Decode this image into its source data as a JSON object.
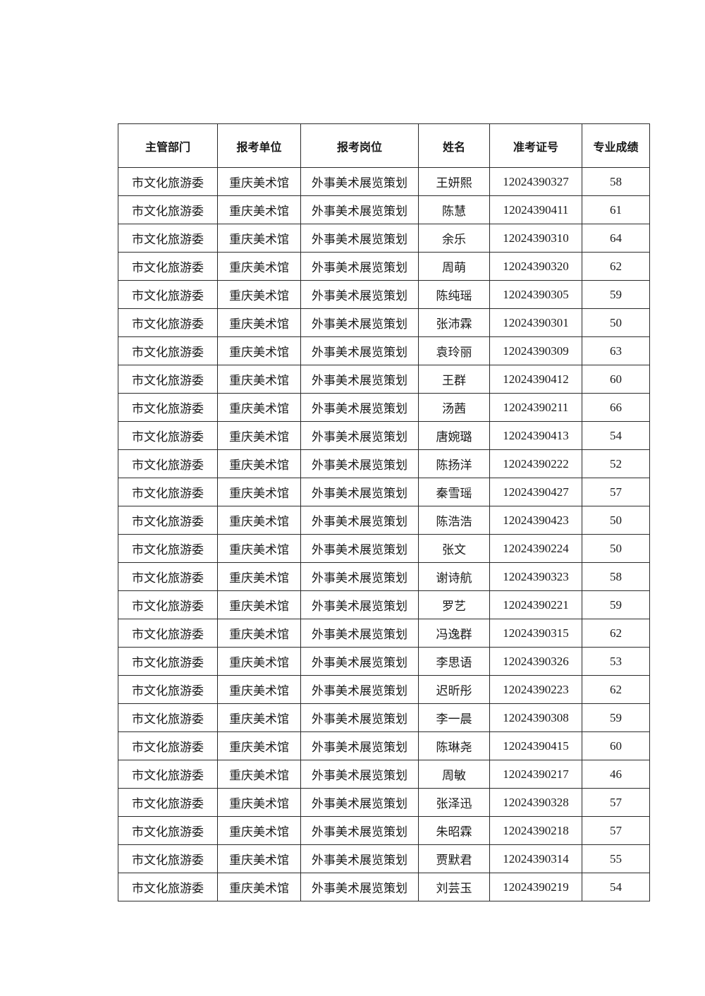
{
  "table": {
    "headers": [
      "主管部门",
      "报考单位",
      "报考岗位",
      "姓名",
      "准考证号",
      "专业成绩"
    ],
    "rows": [
      [
        "市文化旅游委",
        "重庆美术馆",
        "外事美术展览策划",
        "王妍熙",
        "12024390327",
        "58"
      ],
      [
        "市文化旅游委",
        "重庆美术馆",
        "外事美术展览策划",
        "陈慧",
        "12024390411",
        "61"
      ],
      [
        "市文化旅游委",
        "重庆美术馆",
        "外事美术展览策划",
        "余乐",
        "12024390310",
        "64"
      ],
      [
        "市文化旅游委",
        "重庆美术馆",
        "外事美术展览策划",
        "周萌",
        "12024390320",
        "62"
      ],
      [
        "市文化旅游委",
        "重庆美术馆",
        "外事美术展览策划",
        "陈纯瑶",
        "12024390305",
        "59"
      ],
      [
        "市文化旅游委",
        "重庆美术馆",
        "外事美术展览策划",
        "张沛霖",
        "12024390301",
        "50"
      ],
      [
        "市文化旅游委",
        "重庆美术馆",
        "外事美术展览策划",
        "袁玲丽",
        "12024390309",
        "63"
      ],
      [
        "市文化旅游委",
        "重庆美术馆",
        "外事美术展览策划",
        "王群",
        "12024390412",
        "60"
      ],
      [
        "市文化旅游委",
        "重庆美术馆",
        "外事美术展览策划",
        "汤茜",
        "12024390211",
        "66"
      ],
      [
        "市文化旅游委",
        "重庆美术馆",
        "外事美术展览策划",
        "唐婉璐",
        "12024390413",
        "54"
      ],
      [
        "市文化旅游委",
        "重庆美术馆",
        "外事美术展览策划",
        "陈扬洋",
        "12024390222",
        "52"
      ],
      [
        "市文化旅游委",
        "重庆美术馆",
        "外事美术展览策划",
        "秦雪瑶",
        "12024390427",
        "57"
      ],
      [
        "市文化旅游委",
        "重庆美术馆",
        "外事美术展览策划",
        "陈浩浩",
        "12024390423",
        "50"
      ],
      [
        "市文化旅游委",
        "重庆美术馆",
        "外事美术展览策划",
        "张文",
        "12024390224",
        "50"
      ],
      [
        "市文化旅游委",
        "重庆美术馆",
        "外事美术展览策划",
        "谢诗航",
        "12024390323",
        "58"
      ],
      [
        "市文化旅游委",
        "重庆美术馆",
        "外事美术展览策划",
        "罗艺",
        "12024390221",
        "59"
      ],
      [
        "市文化旅游委",
        "重庆美术馆",
        "外事美术展览策划",
        "冯逸群",
        "12024390315",
        "62"
      ],
      [
        "市文化旅游委",
        "重庆美术馆",
        "外事美术展览策划",
        "李思语",
        "12024390326",
        "53"
      ],
      [
        "市文化旅游委",
        "重庆美术馆",
        "外事美术展览策划",
        "迟昕彤",
        "12024390223",
        "62"
      ],
      [
        "市文化旅游委",
        "重庆美术馆",
        "外事美术展览策划",
        "李一晨",
        "12024390308",
        "59"
      ],
      [
        "市文化旅游委",
        "重庆美术馆",
        "外事美术展览策划",
        "陈琳尧",
        "12024390415",
        "60"
      ],
      [
        "市文化旅游委",
        "重庆美术馆",
        "外事美术展览策划",
        "周敏",
        "12024390217",
        "46"
      ],
      [
        "市文化旅游委",
        "重庆美术馆",
        "外事美术展览策划",
        "张泽迅",
        "12024390328",
        "57"
      ],
      [
        "市文化旅游委",
        "重庆美术馆",
        "外事美术展览策划",
        "朱昭霖",
        "12024390218",
        "57"
      ],
      [
        "市文化旅游委",
        "重庆美术馆",
        "外事美术展览策划",
        "贾默君",
        "12024390314",
        "55"
      ],
      [
        "市文化旅游委",
        "重庆美术馆",
        "外事美术展览策划",
        "刘芸玉",
        "12024390219",
        "54"
      ]
    ]
  }
}
